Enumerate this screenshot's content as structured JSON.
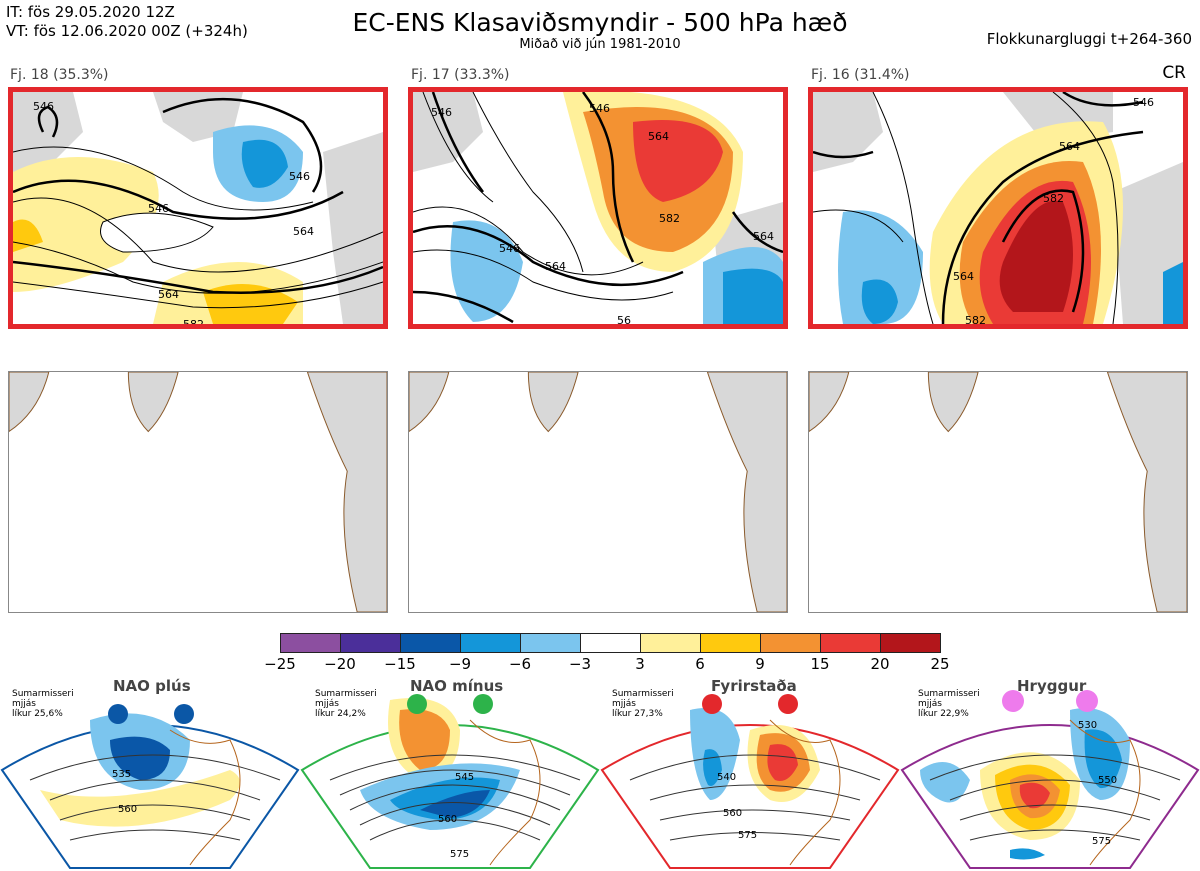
{
  "header": {
    "it_line": "IT: fös 29.05.2020 12Z",
    "vt_line": "VT: fös 12.06.2020 00Z  (+324h)",
    "title": "EC-ENS Klasaviðsmyndir - 500 hPa hæð",
    "subtitle": "Miðað við jún 1981-2010",
    "window": "Flokkunargluggi t+264-360",
    "cr": "CR"
  },
  "clusters": [
    {
      "label": "Fj. 18 (35.3%)",
      "contours": [
        "546",
        "546",
        "546",
        "564",
        "564",
        "582"
      ]
    },
    {
      "label": "Fj. 17 (33.3%)",
      "contours": [
        "546",
        "546",
        "564",
        "564",
        "582",
        "546",
        "564",
        "56"
      ]
    },
    {
      "label": "Fj. 16 (31.4%)",
      "contours": [
        "546",
        "564",
        "582",
        "564",
        "582"
      ]
    }
  ],
  "colorbar": {
    "colors": [
      "#8c4fa0",
      "#4b2f9a",
      "#0a57a8",
      "#1496d9",
      "#7bc5ee",
      "#ffffff",
      "#fff09a",
      "#ffc90e",
      "#f39232",
      "#ea3a36",
      "#b3161b"
    ],
    "ticks": [
      "−25",
      "−20",
      "−15",
      "−9",
      "−6",
      "−3",
      "3",
      "6",
      "9",
      "15",
      "20",
      "25"
    ]
  },
  "regimes": [
    {
      "name": "NAO plús",
      "info": [
        "Sumarmisseri",
        "mjjás",
        "líkur 25,6%"
      ],
      "labels": [
        "535",
        "560"
      ],
      "color": "#0b57a6",
      "dot": "#0b57a6"
    },
    {
      "name": "NAO mínus",
      "info": [
        "Sumarmisseri",
        "mjjás",
        "líkur 24,2%"
      ],
      "labels": [
        "545",
        "560",
        "575"
      ],
      "color": "#2db34a",
      "dot": "#2db34a"
    },
    {
      "name": "Fyrirstaða",
      "info": [
        "Sumarmisseri",
        "mjjás",
        "líkur 27,3%"
      ],
      "labels": [
        "540",
        "560",
        "575"
      ],
      "color": "#e3282c",
      "dot": "#e3282c"
    },
    {
      "name": "Hryggur",
      "info": [
        "Sumarmisseri",
        "mjjás",
        "líkur 22,9%"
      ],
      "labels": [
        "530",
        "550",
        "575"
      ],
      "color": "#8e2b8e",
      "dot": "#ee7bec"
    }
  ]
}
